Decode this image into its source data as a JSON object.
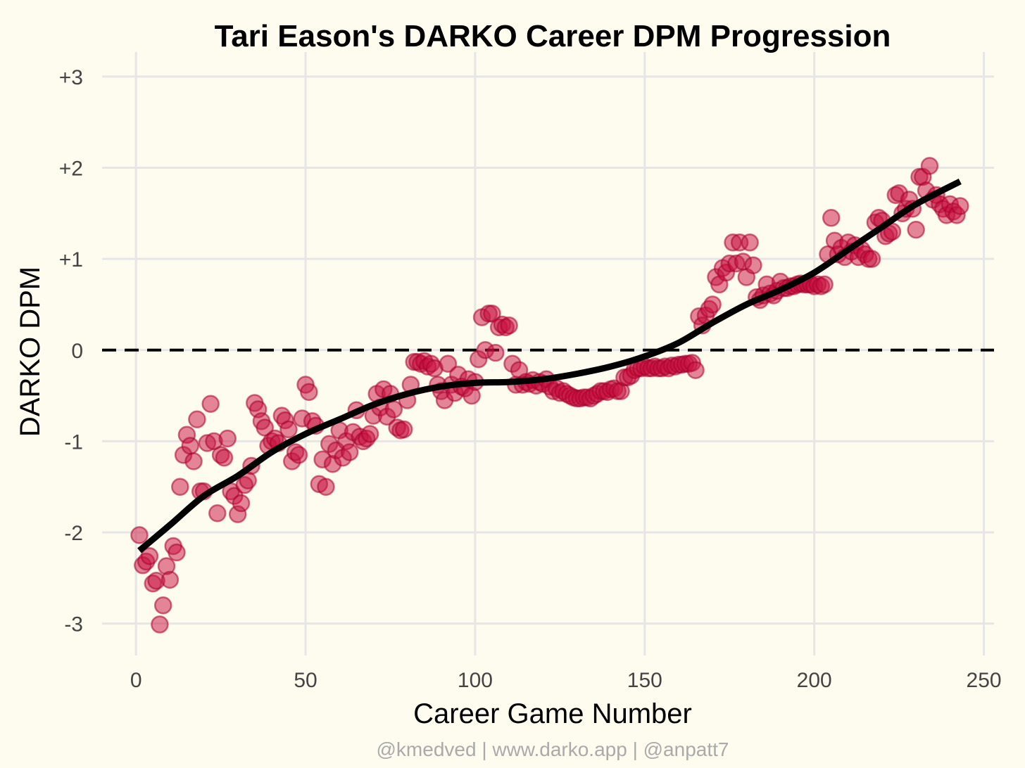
{
  "chart_data": {
    "type": "scatter",
    "title": "Tari Eason's DARKO Career DPM Progression",
    "xlabel": "Career Game Number",
    "ylabel": "DARKO DPM",
    "caption": "@kmedved | www.darko.app | @anpatt7",
    "xlim": [
      -10,
      253
    ],
    "ylim": [
      -3.35,
      3.3
    ],
    "x_ticks": [
      0,
      50,
      100,
      150,
      200,
      250
    ],
    "x_tick_labels": [
      "0",
      "50",
      "100",
      "150",
      "200",
      "250"
    ],
    "y_ticks": [
      3,
      2,
      1,
      0,
      -1,
      -2,
      -3
    ],
    "y_tick_labels": [
      "+3",
      "+2",
      "+1",
      "0",
      "-1",
      "-2",
      "-3"
    ],
    "grid": true,
    "reference_line": {
      "y": 0,
      "style": "dashed"
    },
    "colors": {
      "point_fill": "#c8103e",
      "point_stroke": "#a8002e",
      "trend": "#000000",
      "grid": "#e6e6e6",
      "background": "#fefbef"
    },
    "series": [
      {
        "type": "scatter",
        "points": [
          [
            1,
            -2.03
          ],
          [
            2,
            -2.36
          ],
          [
            3,
            -2.32
          ],
          [
            4,
            -2.26
          ],
          [
            5,
            -2.56
          ],
          [
            6,
            -2.53
          ],
          [
            7,
            -3.01
          ],
          [
            8,
            -2.8
          ],
          [
            9,
            -2.37
          ],
          [
            10,
            -2.52
          ],
          [
            11,
            -2.15
          ],
          [
            12,
            -2.22
          ],
          [
            13,
            -1.5
          ],
          [
            14,
            -1.15
          ],
          [
            15,
            -0.93
          ],
          [
            16,
            -1.05
          ],
          [
            17,
            -1.22
          ],
          [
            18,
            -0.76
          ],
          [
            19,
            -1.55
          ],
          [
            20,
            -1.55
          ],
          [
            21,
            -1.02
          ],
          [
            22,
            -0.59
          ],
          [
            23,
            -1.0
          ],
          [
            24,
            -1.79
          ],
          [
            25,
            -1.15
          ],
          [
            26,
            -1.18
          ],
          [
            27,
            -0.97
          ],
          [
            28,
            -1.55
          ],
          [
            29,
            -1.6
          ],
          [
            30,
            -1.8
          ],
          [
            31,
            -1.68
          ],
          [
            32,
            -1.48
          ],
          [
            33,
            -1.43
          ],
          [
            34,
            -1.27
          ],
          [
            35,
            -0.58
          ],
          [
            36,
            -0.65
          ],
          [
            37,
            -0.78
          ],
          [
            38,
            -0.85
          ],
          [
            39,
            -1.05
          ],
          [
            40,
            -1.0
          ],
          [
            41,
            -0.97
          ],
          [
            42,
            -1.02
          ],
          [
            43,
            -0.72
          ],
          [
            44,
            -0.77
          ],
          [
            45,
            -0.87
          ],
          [
            46,
            -1.22
          ],
          [
            47,
            -1.12
          ],
          [
            48,
            -1.15
          ],
          [
            49,
            -0.75
          ],
          [
            50,
            -0.38
          ],
          [
            51,
            -0.46
          ],
          [
            52,
            -0.78
          ],
          [
            53,
            -0.83
          ],
          [
            54,
            -1.47
          ],
          [
            55,
            -1.2
          ],
          [
            56,
            -1.5
          ],
          [
            57,
            -1.03
          ],
          [
            58,
            -1.25
          ],
          [
            59,
            -1.1
          ],
          [
            60,
            -0.88
          ],
          [
            61,
            -1.18
          ],
          [
            62,
            -1.0
          ],
          [
            63,
            -1.12
          ],
          [
            64,
            -0.9
          ],
          [
            65,
            -0.66
          ],
          [
            66,
            -0.95
          ],
          [
            67,
            -1.0
          ],
          [
            68,
            -0.97
          ],
          [
            69,
            -0.92
          ],
          [
            70,
            -0.72
          ],
          [
            71,
            -0.48
          ],
          [
            72,
            -0.63
          ],
          [
            73,
            -0.43
          ],
          [
            74,
            -0.73
          ],
          [
            75,
            -0.48
          ],
          [
            76,
            -0.65
          ],
          [
            77,
            -0.85
          ],
          [
            78,
            -0.88
          ],
          [
            79,
            -0.87
          ],
          [
            80,
            -0.55
          ],
          [
            81,
            -0.38
          ],
          [
            82,
            -0.13
          ],
          [
            83,
            -0.13
          ],
          [
            84,
            -0.15
          ],
          [
            85,
            -0.12
          ],
          [
            86,
            -0.18
          ],
          [
            87,
            -0.15
          ],
          [
            88,
            -0.2
          ],
          [
            89,
            -0.38
          ],
          [
            90,
            -0.45
          ],
          [
            91,
            -0.55
          ],
          [
            92,
            -0.15
          ],
          [
            93,
            -0.38
          ],
          [
            94,
            -0.47
          ],
          [
            95,
            -0.27
          ],
          [
            96,
            -0.4
          ],
          [
            97,
            -0.42
          ],
          [
            98,
            -0.32
          ],
          [
            99,
            -0.5
          ],
          [
            100,
            -0.35
          ],
          [
            101,
            -0.1
          ],
          [
            102,
            0.36
          ],
          [
            103,
            0.0
          ],
          [
            104,
            0.4
          ],
          [
            105,
            0.4
          ],
          [
            106,
            -0.03
          ],
          [
            107,
            0.25
          ],
          [
            108,
            0.28
          ],
          [
            109,
            0.25
          ],
          [
            110,
            0.27
          ],
          [
            111,
            -0.15
          ],
          [
            112,
            -0.38
          ],
          [
            113,
            -0.22
          ],
          [
            114,
            -0.38
          ],
          [
            115,
            -0.35
          ],
          [
            116,
            -0.37
          ],
          [
            117,
            -0.33
          ],
          [
            118,
            -0.39
          ],
          [
            119,
            -0.35
          ],
          [
            120,
            -0.37
          ],
          [
            121,
            -0.32
          ],
          [
            122,
            -0.4
          ],
          [
            123,
            -0.45
          ],
          [
            124,
            -0.42
          ],
          [
            125,
            -0.47
          ],
          [
            126,
            -0.45
          ],
          [
            127,
            -0.48
          ],
          [
            128,
            -0.5
          ],
          [
            129,
            -0.52
          ],
          [
            130,
            -0.53
          ],
          [
            131,
            -0.53
          ],
          [
            132,
            -0.52
          ],
          [
            133,
            -0.52
          ],
          [
            134,
            -0.53
          ],
          [
            135,
            -0.5
          ],
          [
            136,
            -0.48
          ],
          [
            137,
            -0.45
          ],
          [
            138,
            -0.45
          ],
          [
            139,
            -0.46
          ],
          [
            140,
            -0.43
          ],
          [
            141,
            -0.42
          ],
          [
            142,
            -0.45
          ],
          [
            143,
            -0.45
          ],
          [
            144,
            -0.3
          ],
          [
            145,
            -0.3
          ],
          [
            146,
            -0.28
          ],
          [
            147,
            -0.22
          ],
          [
            148,
            -0.2
          ],
          [
            149,
            -0.2
          ],
          [
            150,
            -0.18
          ],
          [
            151,
            -0.2
          ],
          [
            152,
            -0.2
          ],
          [
            153,
            -0.18
          ],
          [
            154,
            -0.2
          ],
          [
            155,
            -0.2
          ],
          [
            156,
            -0.18
          ],
          [
            157,
            -0.2
          ],
          [
            158,
            -0.17
          ],
          [
            159,
            -0.18
          ],
          [
            160,
            -0.16
          ],
          [
            161,
            -0.16
          ],
          [
            162,
            -0.15
          ],
          [
            163,
            -0.15
          ],
          [
            164,
            -0.14
          ],
          [
            165,
            -0.22
          ],
          [
            166,
            0.37
          ],
          [
            167,
            0.27
          ],
          [
            168,
            0.38
          ],
          [
            169,
            0.45
          ],
          [
            170,
            0.5
          ],
          [
            171,
            0.8
          ],
          [
            172,
            0.72
          ],
          [
            173,
            0.9
          ],
          [
            174,
            0.85
          ],
          [
            175,
            0.95
          ],
          [
            176,
            1.18
          ],
          [
            177,
            0.95
          ],
          [
            178,
            1.18
          ],
          [
            179,
            0.97
          ],
          [
            180,
            0.8
          ],
          [
            181,
            1.18
          ],
          [
            182,
            0.93
          ],
          [
            183,
            0.58
          ],
          [
            184,
            0.55
          ],
          [
            185,
            0.6
          ],
          [
            186,
            0.72
          ],
          [
            187,
            0.62
          ],
          [
            188,
            0.6
          ],
          [
            189,
            0.65
          ],
          [
            190,
            0.75
          ],
          [
            191,
            0.68
          ],
          [
            192,
            0.68
          ],
          [
            193,
            0.7
          ],
          [
            194,
            0.7
          ],
          [
            195,
            0.72
          ],
          [
            196,
            0.73
          ],
          [
            197,
            0.72
          ],
          [
            198,
            0.72
          ],
          [
            199,
            0.72
          ],
          [
            200,
            0.7
          ],
          [
            201,
            0.72
          ],
          [
            202,
            0.7
          ],
          [
            203,
            0.72
          ],
          [
            204,
            1.05
          ],
          [
            205,
            1.45
          ],
          [
            206,
            1.2
          ],
          [
            207,
            1.05
          ],
          [
            208,
            1.12
          ],
          [
            209,
            1.02
          ],
          [
            210,
            1.18
          ],
          [
            211,
            1.08
          ],
          [
            212,
            1.15
          ],
          [
            213,
            1.02
          ],
          [
            214,
            1.1
          ],
          [
            215,
            1.05
          ],
          [
            216,
            1.0
          ],
          [
            217,
            1.0
          ],
          [
            218,
            1.4
          ],
          [
            219,
            1.45
          ],
          [
            220,
            1.42
          ],
          [
            221,
            1.25
          ],
          [
            222,
            1.28
          ],
          [
            223,
            1.3
          ],
          [
            224,
            1.7
          ],
          [
            225,
            1.72
          ],
          [
            226,
            1.5
          ],
          [
            227,
            1.55
          ],
          [
            228,
            1.65
          ],
          [
            229,
            1.55
          ],
          [
            230,
            1.32
          ],
          [
            231,
            1.9
          ],
          [
            232,
            1.9
          ],
          [
            233,
            1.75
          ],
          [
            234,
            2.02
          ],
          [
            235,
            1.65
          ],
          [
            236,
            1.7
          ],
          [
            237,
            1.6
          ],
          [
            238,
            1.55
          ],
          [
            239,
            1.48
          ],
          [
            240,
            1.6
          ],
          [
            241,
            1.52
          ],
          [
            242,
            1.48
          ],
          [
            243,
            1.58
          ]
        ]
      },
      {
        "type": "line",
        "smoothing": "loess",
        "points": [
          [
            1,
            -2.2
          ],
          [
            10,
            -1.92
          ],
          [
            20,
            -1.6
          ],
          [
            30,
            -1.38
          ],
          [
            40,
            -1.12
          ],
          [
            50,
            -0.92
          ],
          [
            60,
            -0.76
          ],
          [
            70,
            -0.6
          ],
          [
            80,
            -0.48
          ],
          [
            90,
            -0.4
          ],
          [
            100,
            -0.36
          ],
          [
            110,
            -0.35
          ],
          [
            120,
            -0.32
          ],
          [
            130,
            -0.26
          ],
          [
            140,
            -0.18
          ],
          [
            150,
            -0.07
          ],
          [
            160,
            0.08
          ],
          [
            170,
            0.3
          ],
          [
            180,
            0.5
          ],
          [
            190,
            0.66
          ],
          [
            200,
            0.85
          ],
          [
            210,
            1.1
          ],
          [
            220,
            1.35
          ],
          [
            230,
            1.6
          ],
          [
            243,
            1.85
          ]
        ]
      }
    ]
  }
}
